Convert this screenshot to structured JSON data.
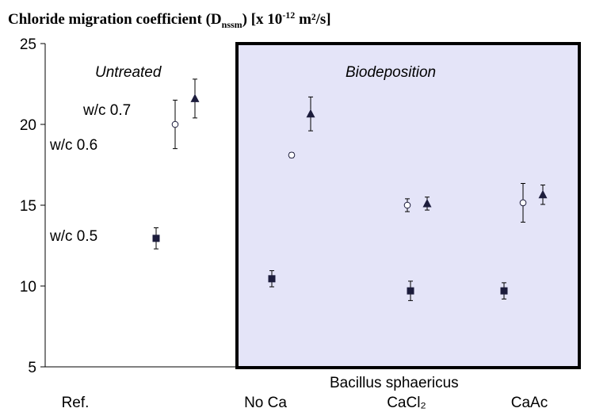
{
  "chart_data": {
    "type": "errorbar-scatter",
    "title": [
      "Chloride migration coefficient (D",
      "nssm",
      ") [x 10",
      "-12",
      " m²/s]"
    ],
    "categories": [
      "Ref.",
      "No Ca",
      "CaCl₂",
      "CaAc"
    ],
    "ylim": [
      5,
      25
    ],
    "yticks": [
      5,
      10,
      15,
      20,
      25
    ],
    "annotations": [
      "Untreated",
      "Biodeposition",
      "w/c 0.7",
      "w/c 0.6",
      "w/c 0.5",
      "Bacillus sphaericus"
    ],
    "series": [
      {
        "name": "w/c 0.5",
        "marker": "square",
        "color": "#1c1c3c",
        "values": [
          12.95,
          10.45,
          9.7,
          9.7
        ],
        "errors": [
          0.65,
          0.5,
          0.6,
          0.5
        ]
      },
      {
        "name": "w/c 0.6",
        "marker": "circle",
        "color": "#1c1c3c",
        "values": [
          20.0,
          18.1,
          15.0,
          15.15
        ],
        "errors": [
          1.5,
          0.15,
          0.4,
          1.2
        ]
      },
      {
        "name": "w/c 0.7",
        "marker": "triangle",
        "color": "#1c1c3c",
        "values": [
          21.6,
          20.65,
          15.1,
          15.65
        ],
        "errors": [
          1.2,
          1.05,
          0.4,
          0.6
        ]
      }
    ]
  }
}
